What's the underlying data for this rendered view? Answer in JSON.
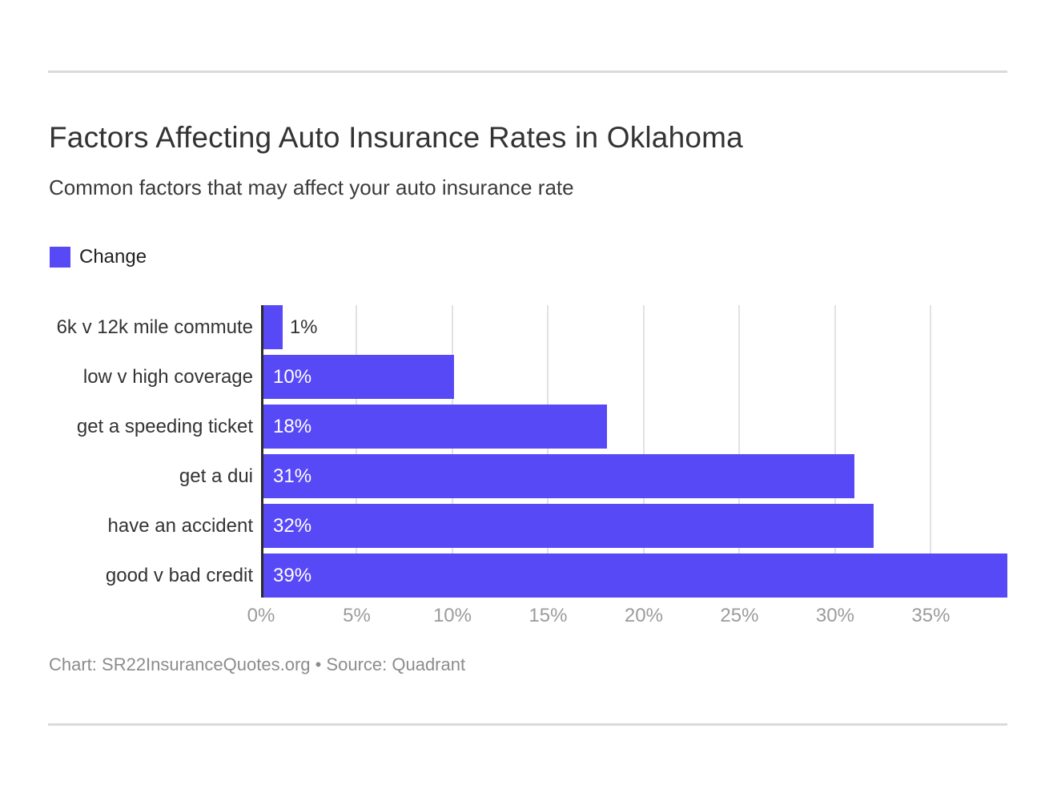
{
  "header": {
    "title": "Factors Affecting Auto Insurance Rates in Oklahoma",
    "subtitle": "Common factors that may affect your auto insurance rate"
  },
  "legend": {
    "label": "Change"
  },
  "chart_data": {
    "type": "bar",
    "orientation": "horizontal",
    "title": "Factors Affecting Auto Insurance Rates in Oklahoma",
    "subtitle": "Common factors that may affect your auto insurance rate",
    "categories": [
      "6k v 12k mile commute",
      "low v high coverage",
      "get a speeding ticket",
      "get a dui",
      "have an accident",
      "good v bad credit"
    ],
    "series": [
      {
        "name": "Change",
        "values": [
          1,
          10,
          18,
          31,
          32,
          39
        ]
      }
    ],
    "value_labels": [
      "1%",
      "10%",
      "18%",
      "31%",
      "32%",
      "39%"
    ],
    "xlabel": "",
    "ylabel": "",
    "xlim": [
      0,
      39
    ],
    "x_ticks": [
      "0%",
      "5%",
      "10%",
      "15%",
      "20%",
      "25%",
      "30%",
      "35%"
    ],
    "x_tick_values": [
      0,
      5,
      10,
      15,
      20,
      25,
      30,
      35
    ],
    "grid": true,
    "legend_position": "top-left",
    "bar_color": "#5849f7"
  },
  "footer": {
    "credit": "Chart: SR22InsuranceQuotes.org • Source: Quadrant"
  },
  "colors": {
    "background": "#ffffff",
    "bar": "#5849f7",
    "axis_line": "#2b2b2b",
    "gridline": "#e2e2e2",
    "tick_label": "#9b9b9b",
    "category_label": "#333333",
    "title": "#333333",
    "subtitle": "#3b3b3b",
    "footer": "#8c8c8c",
    "divider": "#dadada",
    "value_label_inside": "#ffffff",
    "value_label_outside": "#333333"
  }
}
